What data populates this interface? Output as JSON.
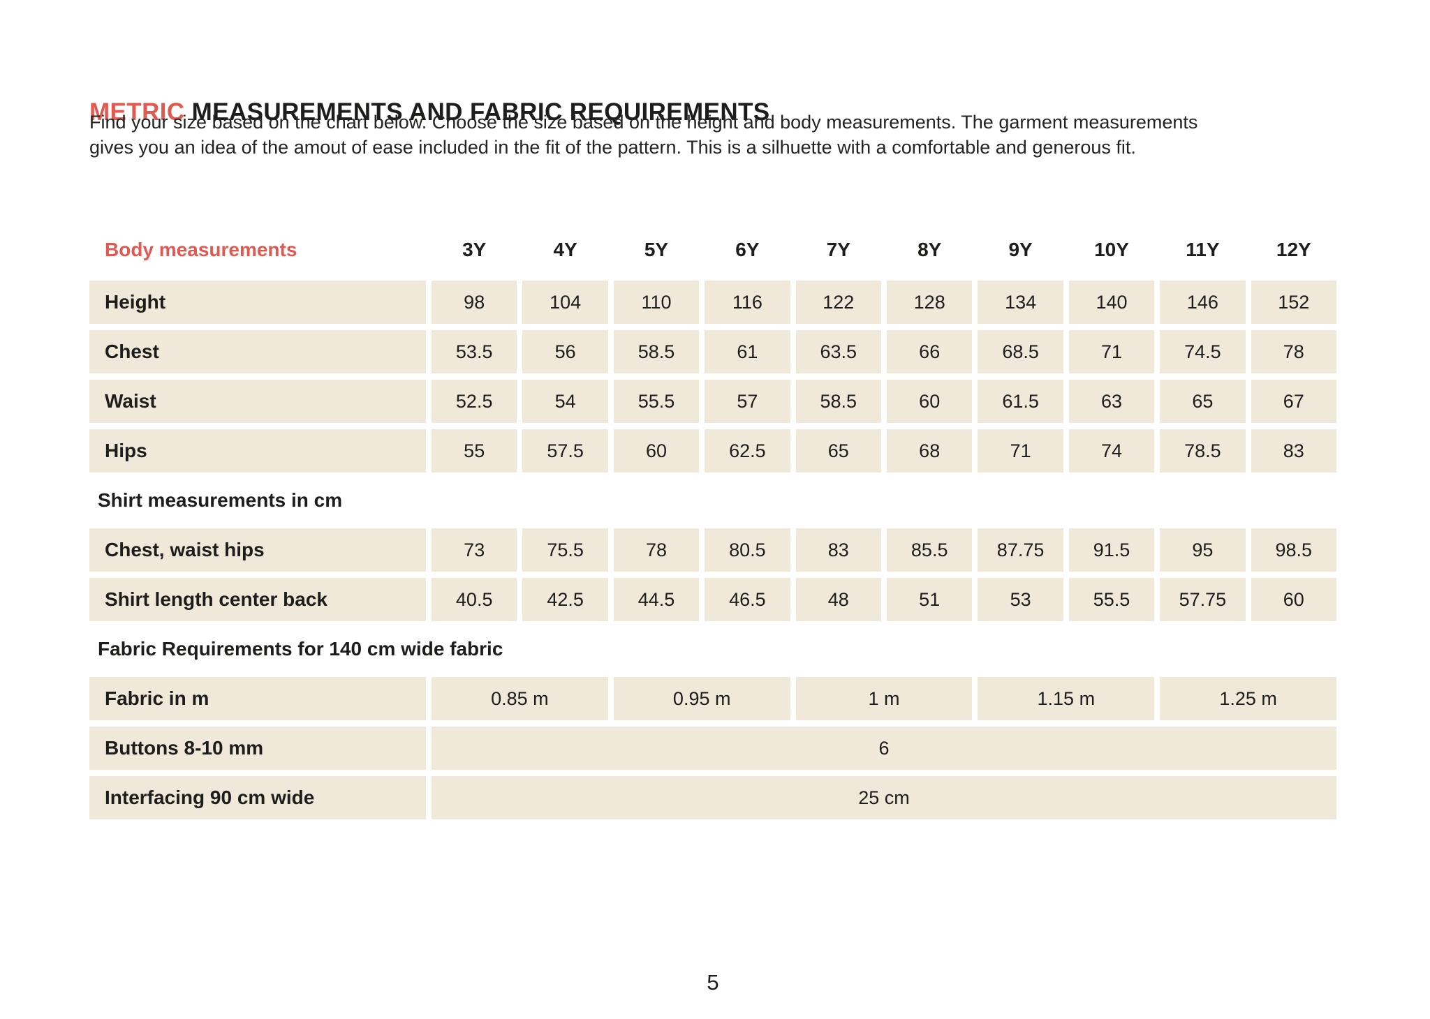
{
  "colors": {
    "accent_red": "#e05a52",
    "cell_beige": "#f0e8d8",
    "text_dark": "#1d1d1b"
  },
  "title": {
    "highlight": "METRIC",
    "rest": " MEASUREMENTS AND FABRIC REQUIREMENTS"
  },
  "intro": {
    "line1": "Find your size based on the chart below. Choose the size based on the height and body measurements. The garment measurements",
    "line2": "gives you an idea of the amout of ease included in the fit of the pattern. This is a silhuette with a comfortable and generous fit."
  },
  "table": {
    "header": {
      "label": "Body measurements",
      "sizes": [
        "3Y",
        "4Y",
        "5Y",
        "6Y",
        "7Y",
        "8Y",
        "9Y",
        "10Y",
        "11Y",
        "12Y"
      ]
    },
    "body_rows": [
      {
        "label": "Height",
        "values": [
          "98",
          "104",
          "110",
          "116",
          "122",
          "128",
          "134",
          "140",
          "146",
          "152"
        ]
      },
      {
        "label": "Chest",
        "values": [
          "53.5",
          "56",
          "58.5",
          "61",
          "63.5",
          "66",
          "68.5",
          "71",
          "74.5",
          "78"
        ]
      },
      {
        "label": "Waist",
        "values": [
          "52.5",
          "54",
          "55.5",
          "57",
          "58.5",
          "60",
          "61.5",
          "63",
          "65",
          "67"
        ]
      },
      {
        "label": "Hips",
        "values": [
          "55",
          "57.5",
          "60",
          "62.5",
          "65",
          "68",
          "71",
          "74",
          "78.5",
          "83"
        ]
      }
    ],
    "shirt_section": {
      "heading": "Shirt measurements in cm",
      "rows": [
        {
          "label": "Chest, waist hips",
          "values": [
            "73",
            "75.5",
            "78",
            "80.5",
            "83",
            "85.5",
            "87.75",
            "91.5",
            "95",
            "98.5"
          ]
        },
        {
          "label": "Shirt length center back",
          "values": [
            "40.5",
            "42.5",
            "44.5",
            "46.5",
            "48",
            "51",
            "53",
            "55.5",
            "57.75",
            "60"
          ]
        }
      ]
    },
    "fabric_section": {
      "heading": "Fabric Requirements for 140 cm wide fabric",
      "fabric_row": {
        "label": "Fabric  in m",
        "values": [
          "0.85 m",
          "0.95 m",
          "1 m",
          "1.15 m",
          "1.25 m"
        ]
      },
      "full_rows": [
        {
          "label": "Buttons 8-10 mm",
          "value": "6"
        },
        {
          "label": "Interfacing 90 cm wide",
          "value": "25 cm"
        }
      ]
    }
  },
  "page": {
    "number": "5"
  }
}
